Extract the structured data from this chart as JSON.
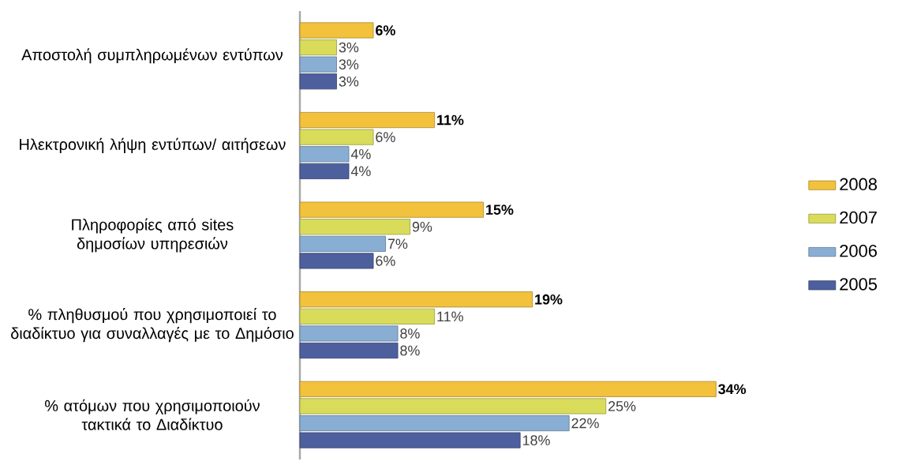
{
  "chart_data": {
    "type": "bar",
    "orientation": "horizontal",
    "legend": "right",
    "categories": [
      "Αποστολή συμπληρωμένων εντύπων",
      "Ηλεκτρονική λήψη εντύπων/ αιτήσεων",
      "Πληροφορίες από sites δημοσίων υπηρεσιών",
      "% πληθυσμού που χρησιμοποιεί το διαδίκτυο για συναλλαγές με το Δημόσιο",
      "% ατόμων που χρησιμοποιούν τακτικά το Διαδίκτυο"
    ],
    "series": [
      {
        "name": "2008",
        "color": "#f2c23c",
        "values": [
          6,
          11,
          15,
          19,
          34
        ],
        "value_labels": [
          "6%",
          "11%",
          "15%",
          "19%",
          "34%"
        ]
      },
      {
        "name": "2007",
        "color": "#d8dc5a",
        "values": [
          3,
          6,
          9,
          11,
          25
        ],
        "value_labels": [
          "3%",
          "6%",
          "9%",
          "11%",
          "25%"
        ]
      },
      {
        "name": "2006",
        "color": "#88aed4",
        "values": [
          3,
          4,
          7,
          8,
          22
        ],
        "value_labels": [
          "3%",
          "4%",
          "7%",
          "8%",
          "22%"
        ]
      },
      {
        "name": "2005",
        "color": "#4e5f9e",
        "values": [
          3,
          4,
          6,
          8,
          18
        ],
        "value_labels": [
          "3%",
          "4%",
          "6%",
          "8%",
          "18%"
        ]
      }
    ]
  }
}
